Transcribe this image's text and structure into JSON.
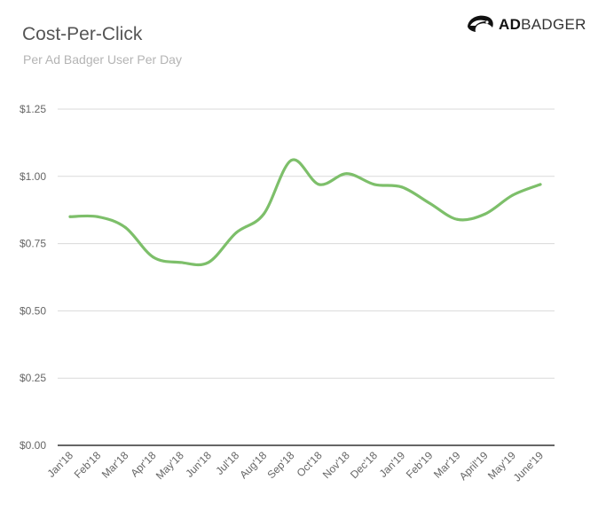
{
  "header": {
    "title": "Cost-Per-Click",
    "subtitle": "Per Ad Badger User Per Day"
  },
  "brand": {
    "icon": "badger-head-icon",
    "name_bold": "AD",
    "name_light": "BADGER"
  },
  "colors": {
    "line": "#7dbf6a",
    "grid": "#d9d9d9",
    "axis": "#333333"
  },
  "chart_data": {
    "type": "line",
    "title": "Cost-Per-Click",
    "subtitle": "Per Ad Badger User Per Day",
    "categories": [
      "Jan'18",
      "Feb'18",
      "Mar'18",
      "Apr'18",
      "May'18",
      "Jun'18",
      "Jul'18",
      "Aug'18",
      "Sep'18",
      "Oct'18",
      "Nov'18",
      "Dec'18",
      "Jan'19",
      "Feb'19",
      "Mar'19",
      "April'19",
      "May'19",
      "June'19"
    ],
    "series": [
      {
        "values": [
          0.85,
          0.85,
          0.81,
          0.7,
          0.68,
          0.68,
          0.79,
          0.86,
          1.06,
          0.97,
          1.01,
          0.97,
          0.96,
          0.9,
          0.84,
          0.86,
          0.93,
          0.97
        ]
      }
    ],
    "ylim": [
      0,
      1.25
    ],
    "yticks": [
      0,
      0.25,
      0.5,
      0.75,
      1.0,
      1.25
    ],
    "ytick_labels": [
      "$0.00",
      "$0.25",
      "$0.50",
      "$0.75",
      "$1.00",
      "$1.25"
    ],
    "xlabel": "",
    "ylabel": "",
    "grid": true,
    "legend": "none"
  }
}
